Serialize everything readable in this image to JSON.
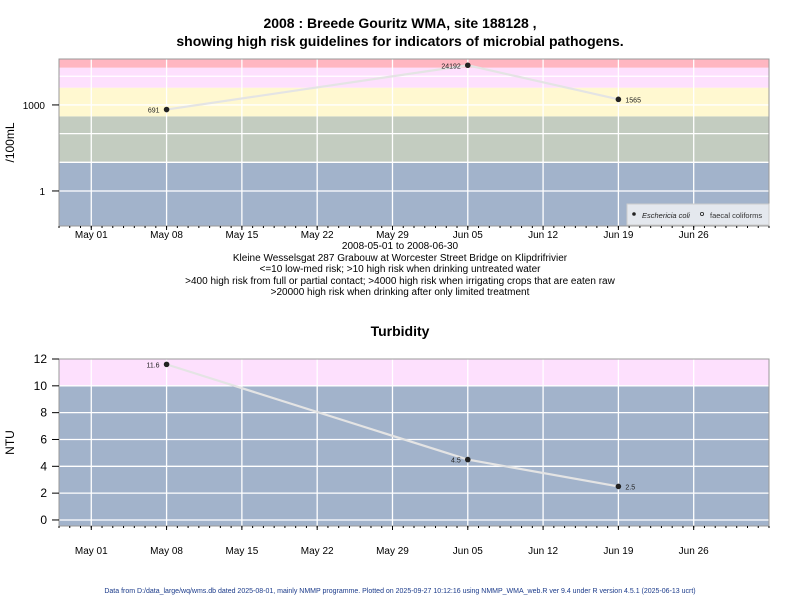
{
  "title_lines": [
    "2008 : Breede Gouritz WMA, site 188128 ,",
    "showing high risk guidelines for indicators of microbial pathogens."
  ],
  "notes": [
    "2008-05-01 to 2008-06-30",
    "Kleine Wesselsgat 287 Grabouw at Worcester Street Bridge on Klipdrifrivier",
    "<=10 low-med risk; >10 high risk when drinking untreated water",
    ">400 high risk from full or partial contact; >4000 high risk when irrigating crops that are eaten raw",
    ">20000 high risk when drinking after only limited treatment"
  ],
  "footer": "Data from D:/data_large/wq/wms.db dated 2025-08-01, mainly NMMP programme. Plotted on 2025-09-27 10:12:16 using NMMP_WMA_web.R ver 9.4 under R version 4.5.1 (2025-06-13 ucrt)",
  "chart_data": [
    {
      "type": "line",
      "title": "",
      "ylabel": "/100mL",
      "yscale": "log",
      "ylim": [
        0.06,
        40000
      ],
      "xlim": [
        "2008-04-28",
        "2008-07-03"
      ],
      "x_ticks": [
        "May 01",
        "May 08",
        "May 15",
        "May 22",
        "May 29",
        "Jun 05",
        "Jun 12",
        "Jun 19",
        "Jun 26"
      ],
      "x_tick_dates": [
        "2008-05-01",
        "2008-05-08",
        "2008-05-15",
        "2008-05-22",
        "2008-05-29",
        "2008-06-05",
        "2008-06-12",
        "2008-06-19",
        "2008-06-26"
      ],
      "y_ticks": [
        1,
        1000
      ],
      "y_tick_labels": [
        "1",
        "1000"
      ],
      "y_grid": [
        1,
        10,
        100,
        1000,
        10000
      ],
      "grid": true,
      "bands": [
        {
          "from": 0.06,
          "to": 10,
          "color": "#A2B3CB"
        },
        {
          "from": 10,
          "to": 400,
          "color": "#C3CCC0"
        },
        {
          "from": 400,
          "to": 4000,
          "color": "#FFF8D0"
        },
        {
          "from": 4000,
          "to": 20000,
          "color": "#FDE0FD"
        },
        {
          "from": 20000,
          "to": 40000,
          "color": "#FFB6C1"
        }
      ],
      "series": [
        {
          "name": "Eschericia coli",
          "marker": "filled",
          "x": [
            "2008-05-08",
            "2008-06-05",
            "2008-06-19"
          ],
          "y": [
            691,
            24192,
            1565
          ],
          "labels": [
            "691",
            "24192",
            "1565"
          ],
          "label_side": [
            "left",
            "left",
            "right"
          ]
        }
      ],
      "legend": {
        "position": "bottom-right",
        "entries": [
          {
            "label": "Eschericia coli",
            "marker": "filled"
          },
          {
            "label": "faecal coliforms",
            "marker": "open"
          }
        ]
      }
    },
    {
      "type": "line",
      "title": "Turbidity",
      "ylabel": "NTU",
      "yscale": "linear",
      "ylim": [
        -0.45,
        12.0
      ],
      "xlim": [
        "2008-04-28",
        "2008-07-03"
      ],
      "x_ticks": [
        "May 01",
        "May 08",
        "May 15",
        "May 22",
        "May 29",
        "Jun 05",
        "Jun 12",
        "Jun 19",
        "Jun 26"
      ],
      "x_tick_dates": [
        "2008-05-01",
        "2008-05-08",
        "2008-05-15",
        "2008-05-22",
        "2008-05-29",
        "2008-06-05",
        "2008-06-12",
        "2008-06-19",
        "2008-06-26"
      ],
      "y_ticks": [
        0,
        2,
        4,
        6,
        8,
        10,
        12
      ],
      "y_tick_labels": [
        "0",
        "2",
        "4",
        "6",
        "8",
        "10",
        "12"
      ],
      "y_grid": [
        0,
        2,
        4,
        6,
        8,
        10
      ],
      "grid": true,
      "bands": [
        {
          "from": -0.45,
          "to": 10,
          "color": "#A2B3CB"
        },
        {
          "from": 10,
          "to": 12.0,
          "color": "#FDE0FD"
        }
      ],
      "series": [
        {
          "marker": "filled",
          "x": [
            "2008-05-08",
            "2008-06-05",
            "2008-06-19"
          ],
          "y": [
            11.6,
            4.5,
            2.5
          ],
          "labels": [
            "11.6",
            "4.5",
            "2.5"
          ],
          "label_side": [
            "left",
            "left",
            "right"
          ]
        }
      ]
    }
  ]
}
